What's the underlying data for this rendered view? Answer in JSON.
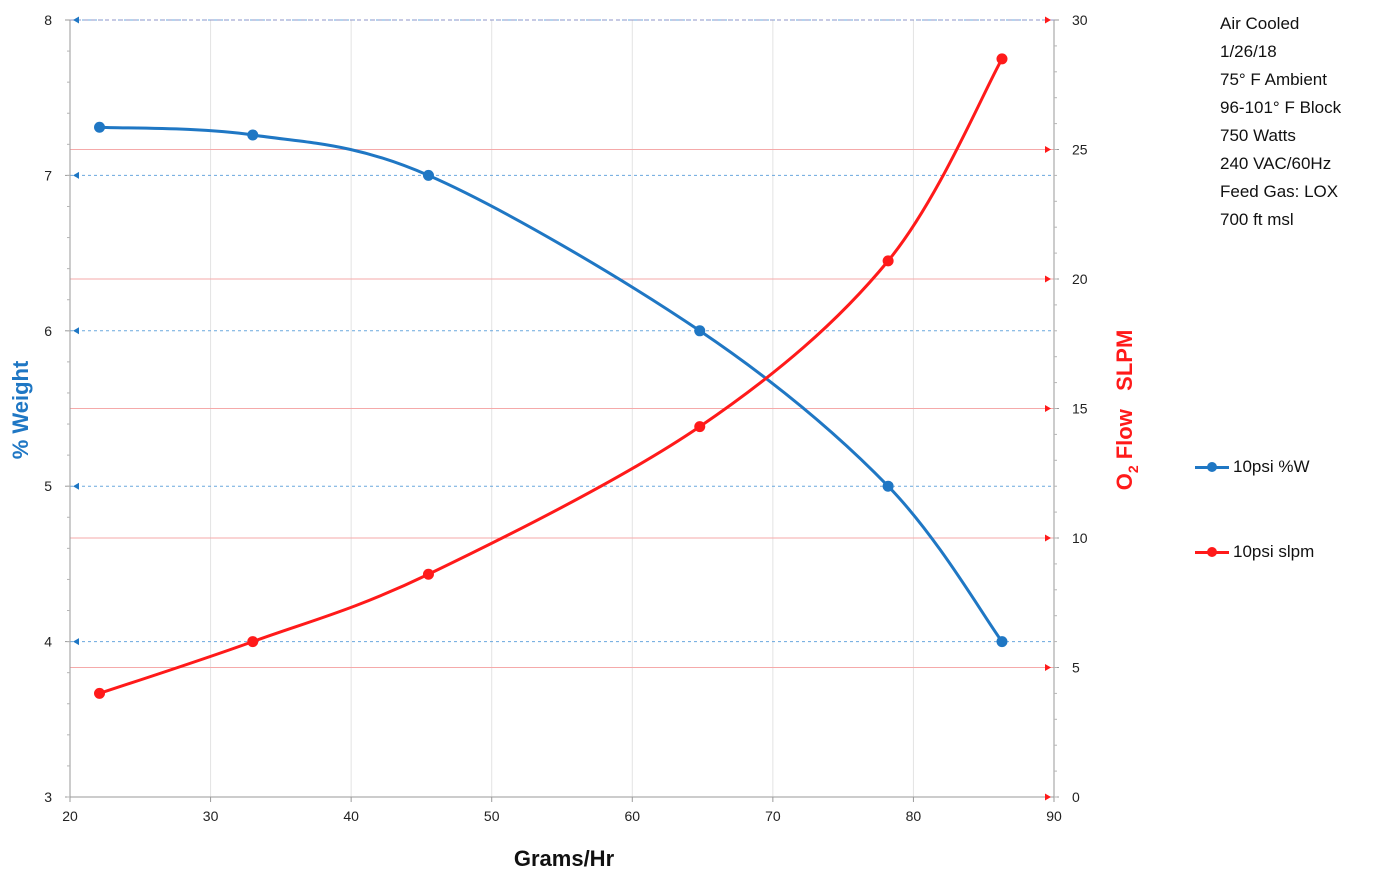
{
  "chart_data": {
    "type": "line",
    "title": "",
    "xlabel": "Grams/Hr",
    "ylabel_left": "% Weight",
    "ylabel_right_main": "O",
    "ylabel_right_sub": "2",
    "ylabel_right_rest": " Flow   SLPM",
    "xlim": [
      20,
      90
    ],
    "x_ticks": [
      20,
      30,
      40,
      50,
      60,
      70,
      80,
      90
    ],
    "ylim_left": [
      3,
      8
    ],
    "y_left_ticks": [
      3,
      4,
      5,
      6,
      7,
      8
    ],
    "ylim_right": [
      0,
      30
    ],
    "y_right_ticks": [
      0,
      5,
      10,
      15,
      20,
      25,
      30
    ],
    "grid": true,
    "legend_position": "right",
    "series": [
      {
        "name": "10psi %W",
        "axis": "left",
        "color": "#1F77C4",
        "x": [
          22.1,
          33.0,
          45.5,
          64.8,
          78.2,
          86.3
        ],
        "y": [
          7.31,
          7.26,
          7.0,
          6.0,
          5.0,
          4.0
        ]
      },
      {
        "name": "10psi slpm",
        "axis": "right",
        "color": "#FF1A1A",
        "x": [
          22.1,
          33.0,
          45.5,
          64.8,
          78.2,
          86.3
        ],
        "y": [
          4.0,
          6.0,
          8.6,
          14.3,
          20.7,
          28.5
        ]
      }
    ]
  },
  "notes": [
    "Air Cooled",
    "1/26/18",
    "75° F Ambient",
    "96-101° F Block",
    "750 Watts",
    "240 VAC/60Hz",
    "Feed Gas: LOX",
    "700 ft msl"
  ]
}
